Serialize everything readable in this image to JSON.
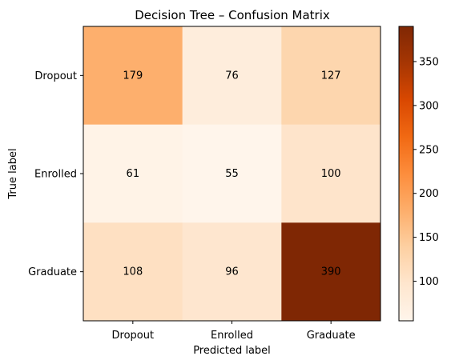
{
  "chart_data": {
    "type": "heatmap",
    "title": "Decision Tree – Confusion Matrix",
    "xlabel": "Predicted label",
    "ylabel": "True label",
    "x_categories": [
      "Dropout",
      "Enrolled",
      "Graduate"
    ],
    "y_categories": [
      "Dropout",
      "Enrolled",
      "Graduate"
    ],
    "values": [
      [
        179,
        76,
        127
      ],
      [
        61,
        55,
        100
      ],
      [
        108,
        96,
        390
      ]
    ],
    "colormap": "Oranges",
    "colorbar": {
      "min": 55,
      "max": 390,
      "ticks": [
        "100",
        "150",
        "200",
        "250",
        "300",
        "350"
      ]
    },
    "text_color_light": "#ffffff",
    "text_color_dark": "#7f2704"
  }
}
